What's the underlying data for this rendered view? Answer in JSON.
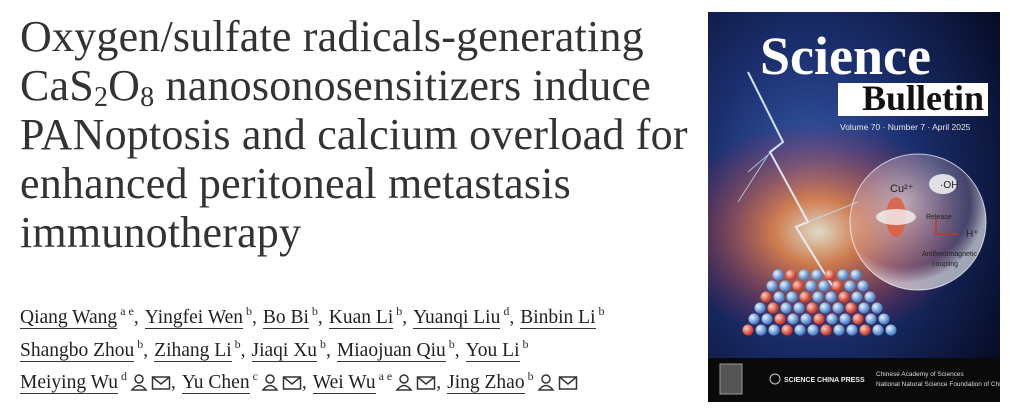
{
  "title_lines": [
    [
      {
        "text": "Oxygen/sulfate radicals-generating"
      }
    ],
    [
      {
        "text": "CaS"
      },
      {
        "text": "2",
        "subscript": true
      },
      {
        "text": "O"
      },
      {
        "text": "8",
        "subscript": true
      },
      {
        "text": " nanosonosensitizers induce"
      }
    ],
    [
      {
        "text": "PANoptosis and calcium overload for"
      }
    ],
    [
      {
        "text": "enhanced peritoneal metastasis"
      }
    ],
    [
      {
        "text": "immunotherapy"
      }
    ]
  ],
  "authors": [
    [
      {
        "name": "Qiang Wang",
        "affiliations": "a e"
      },
      {
        "name": "Yingfei Wen",
        "affiliations": "b"
      },
      {
        "name": "Bo Bi",
        "affiliations": "b"
      },
      {
        "name": "Kuan Li",
        "affiliations": "b"
      },
      {
        "name": "Yuanqi Liu",
        "affiliations": "d"
      },
      {
        "name": "Binbin Li",
        "affiliations": "b"
      }
    ],
    [
      {
        "name": "Shangbo Zhou",
        "affiliations": "b"
      },
      {
        "name": "Zihang Li",
        "affiliations": "b"
      },
      {
        "name": "Jiaqi Xu",
        "affiliations": "b"
      },
      {
        "name": "Miaojuan Qiu",
        "affiliations": "b"
      },
      {
        "name": "You Li",
        "affiliations": "b"
      }
    ],
    [
      {
        "name": "Meiying Wu",
        "affiliations": "d",
        "contact_icons": true
      },
      {
        "name": "Yu Chen",
        "affiliations": "c",
        "contact_icons": true
      },
      {
        "name": "Wei Wu",
        "affiliations": "a e",
        "contact_icons": true
      },
      {
        "name": "Jing Zhao",
        "affiliations": "b",
        "contact_icons": true
      }
    ]
  ],
  "cover": {
    "masthead_top": "Science",
    "masthead_bottom": "Bulletin",
    "issue": "Volume 70 · Number 7 · April 2025",
    "figure_labels": [
      "Cu²⁺",
      "·OH",
      "Release",
      "H⁺",
      "Antiferromagnetic",
      "coupling"
    ],
    "publisher": "SCIENCE CHINA PRESS",
    "sponsors": [
      "Chinese Academy of Sciences",
      "National Natural Science Foundation of China"
    ]
  }
}
